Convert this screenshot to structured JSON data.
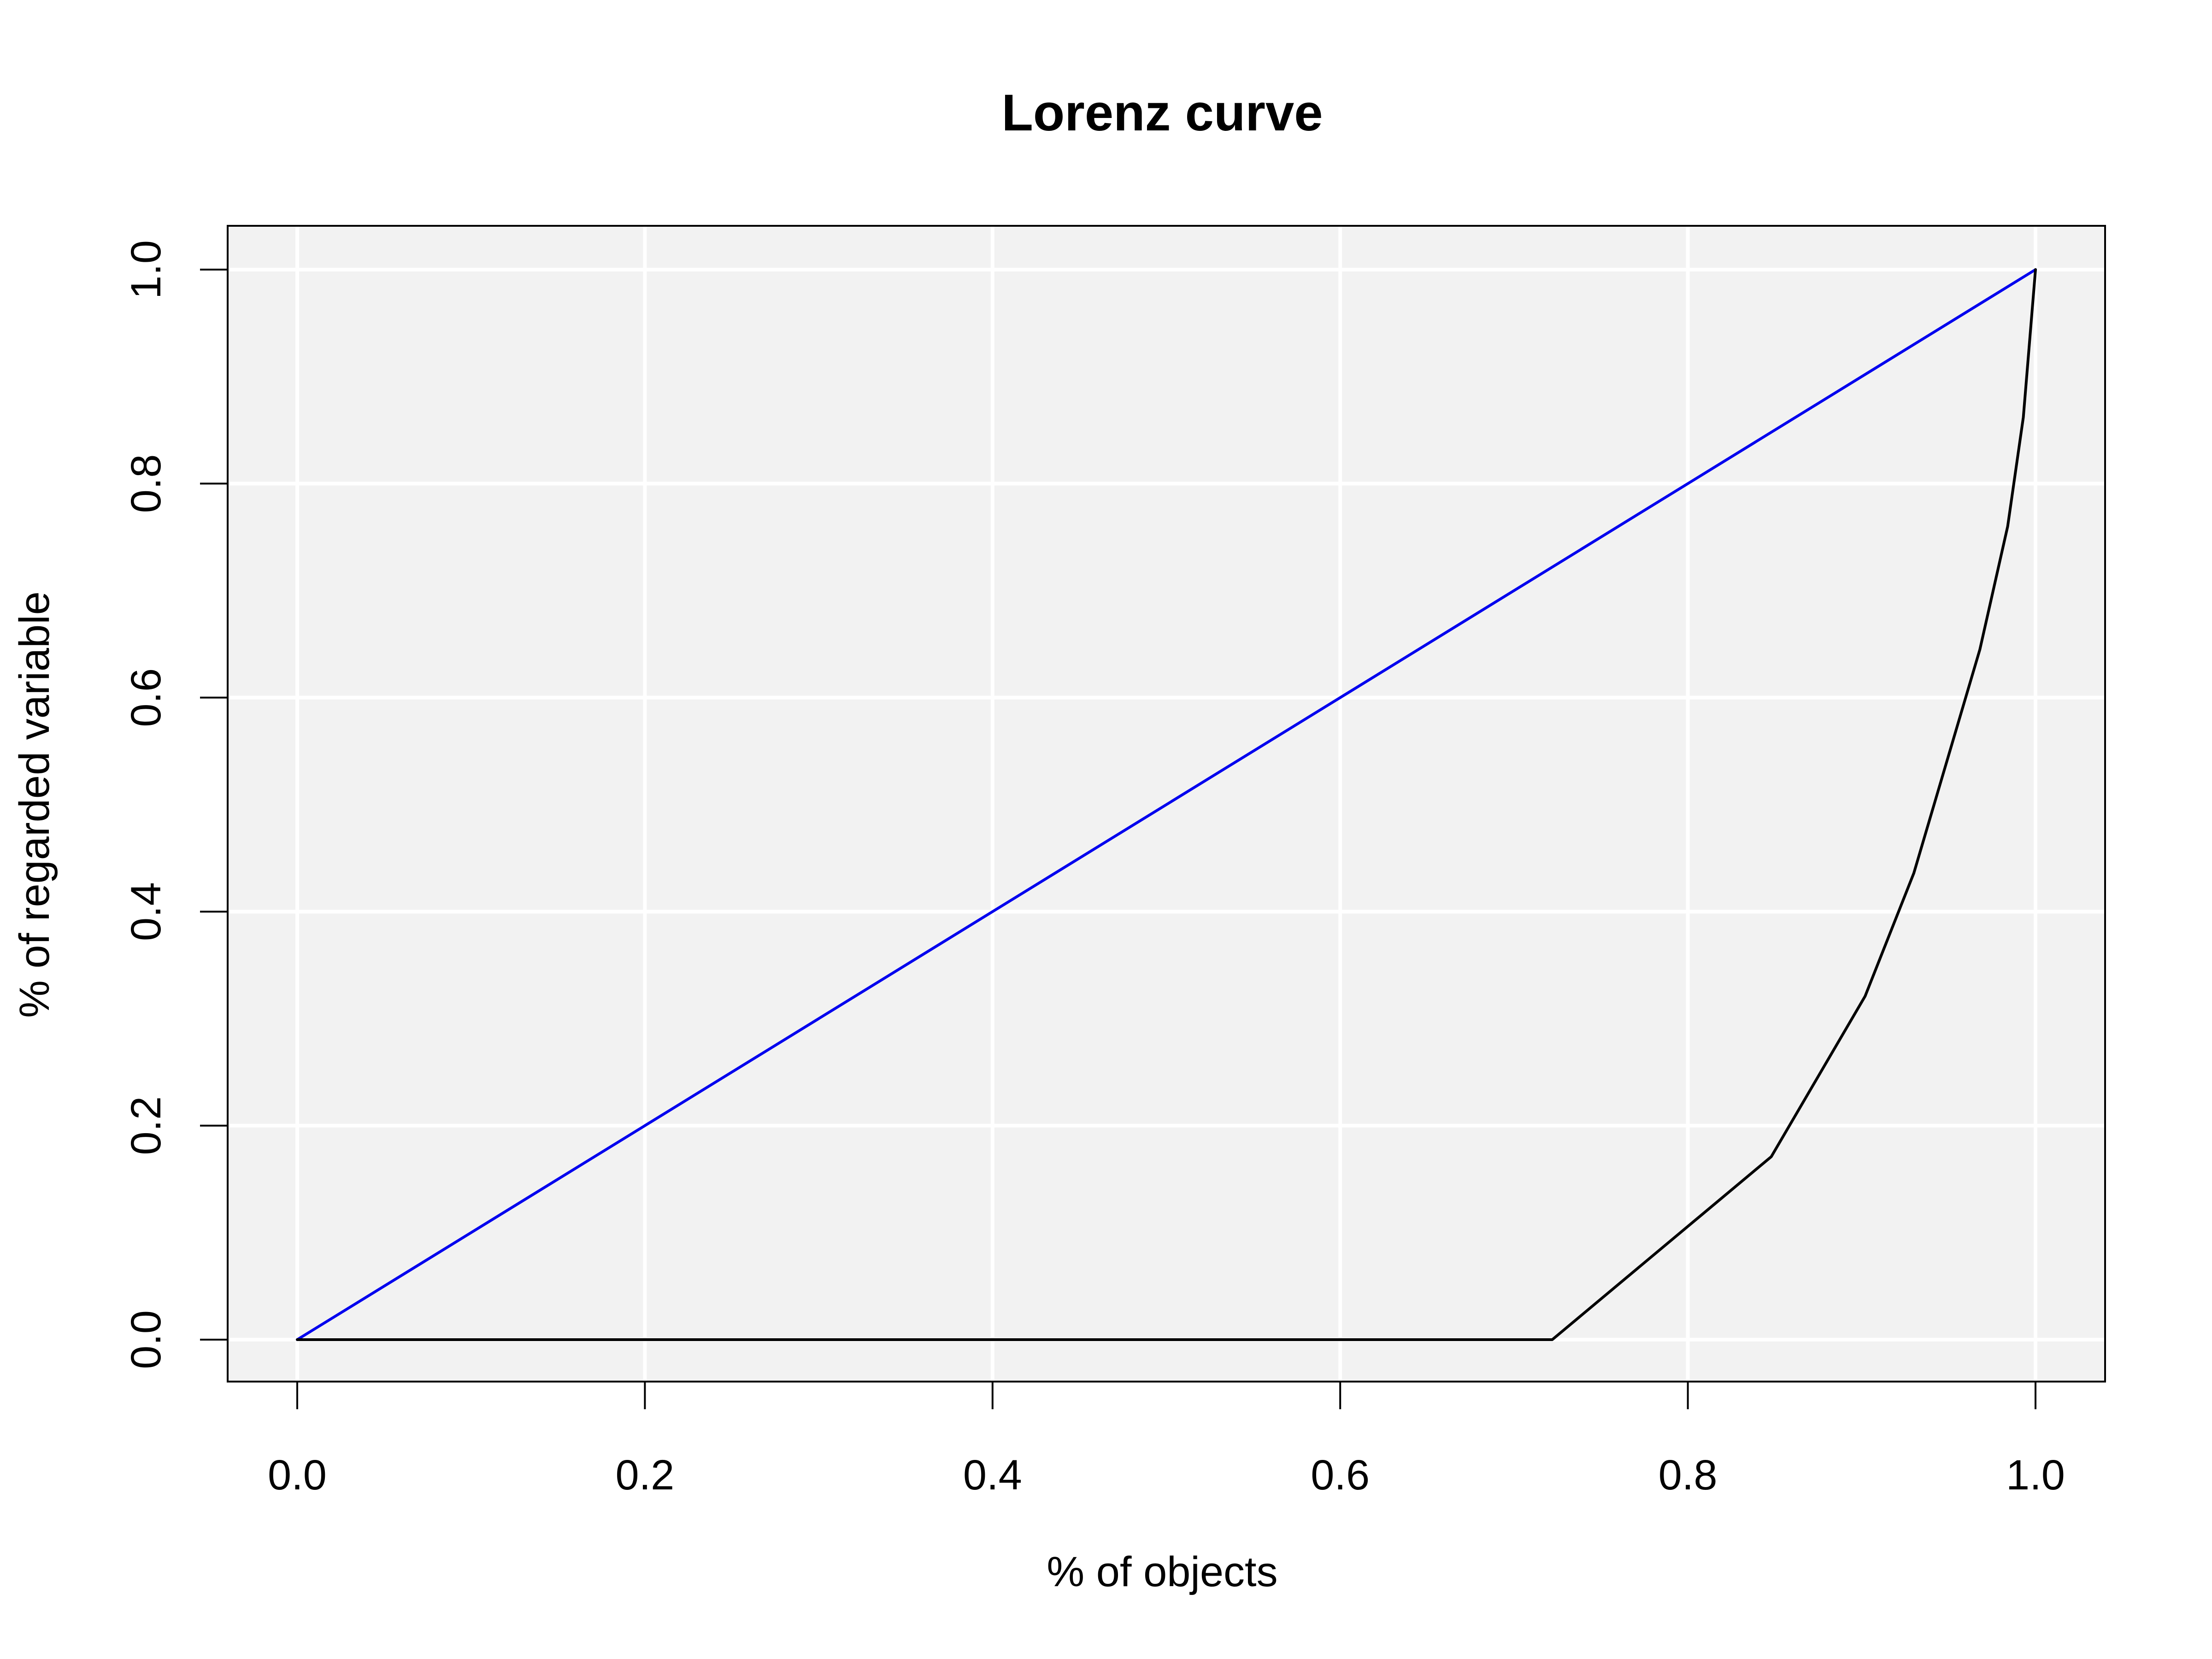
{
  "chart_data": {
    "type": "line",
    "title": "Lorenz curve",
    "xlabel": "% of objects",
    "ylabel": "% of regarded variable",
    "xlim": [
      0,
      1
    ],
    "ylim": [
      0,
      1
    ],
    "xticks": [
      "0.0",
      "0.2",
      "0.4",
      "0.6",
      "0.8",
      "1.0"
    ],
    "yticks": [
      "0.0",
      "0.2",
      "0.4",
      "0.6",
      "0.8",
      "1.0"
    ],
    "grid": true,
    "legend": "none",
    "panel_background": "#f2f2f2",
    "grid_color": "#ffffff",
    "series": [
      {
        "color": "#0000ee",
        "x": [
          0.0,
          1.0
        ],
        "y": [
          0.0,
          1.0
        ]
      },
      {
        "color": "#000000",
        "x": [
          0.0,
          0.722,
          0.848,
          0.902,
          0.93,
          0.968,
          0.984,
          0.993,
          1.0
        ],
        "y": [
          0.0,
          0.0,
          0.171,
          0.321,
          0.436,
          0.645,
          0.76,
          0.862,
          1.0
        ]
      }
    ]
  }
}
